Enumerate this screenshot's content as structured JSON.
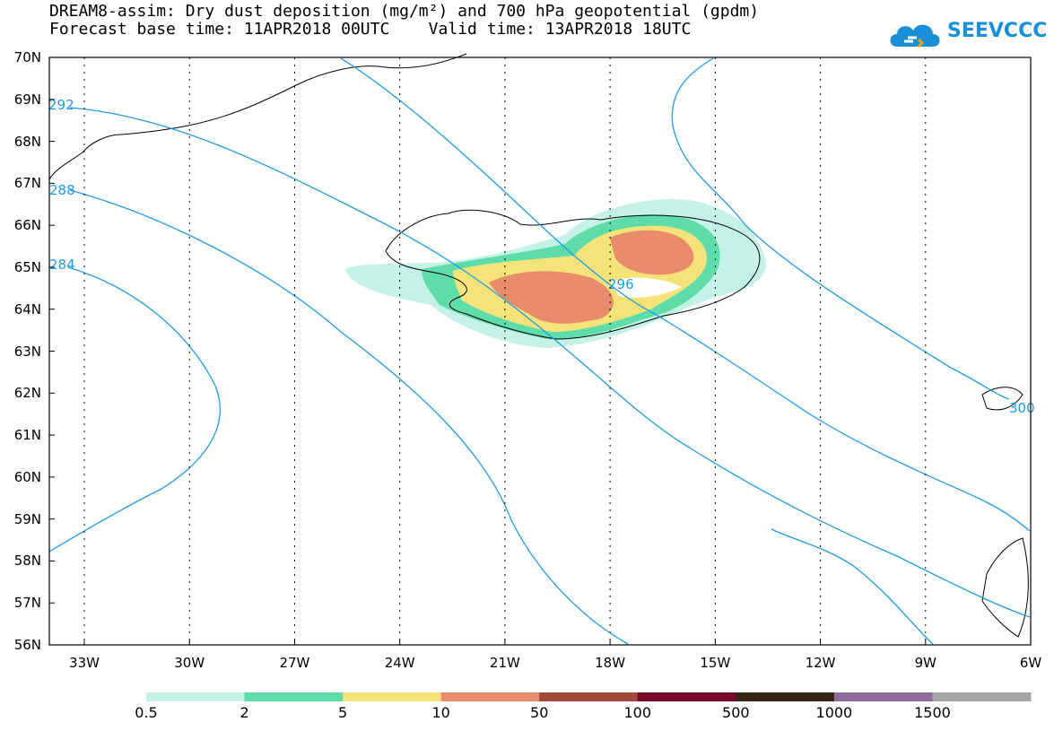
{
  "title": {
    "line1": "DREAM8-assim: Dry dust deposition (mg/m²) and 700 hPa geopotential (gpdm)",
    "base_label": "Forecast base time:",
    "base_time": "11APR2018 00UTC",
    "valid_label": "Valid time:",
    "valid_time": "13APR2018 18UTC"
  },
  "logo": {
    "text": "SEEVCCC",
    "color": "#1a8fd8"
  },
  "map": {
    "lat_labels": [
      "70N",
      "69N",
      "68N",
      "67N",
      "66N",
      "65N",
      "64N",
      "63N",
      "62N",
      "61N",
      "60N",
      "59N",
      "58N",
      "57N",
      "56N"
    ],
    "lon_labels": [
      "33W",
      "30W",
      "27W",
      "24W",
      "21W",
      "18W",
      "15W",
      "12W",
      "9W",
      "6W"
    ],
    "contour_color": "#1e9be6",
    "contour_labels": [
      "292",
      "288",
      "284",
      "296",
      "300"
    ]
  },
  "colorbar": {
    "labels": [
      "0.5",
      "2",
      "5",
      "10",
      "50",
      "100",
      "500",
      "1000",
      "1500"
    ],
    "colors": [
      "#c4f2e7",
      "#5edcaa",
      "#f5e37a",
      "#e98c6c",
      "#a04a3c",
      "#7a0a2a",
      "#352515",
      "#8f6a9a",
      "#a5a5a5"
    ]
  }
}
